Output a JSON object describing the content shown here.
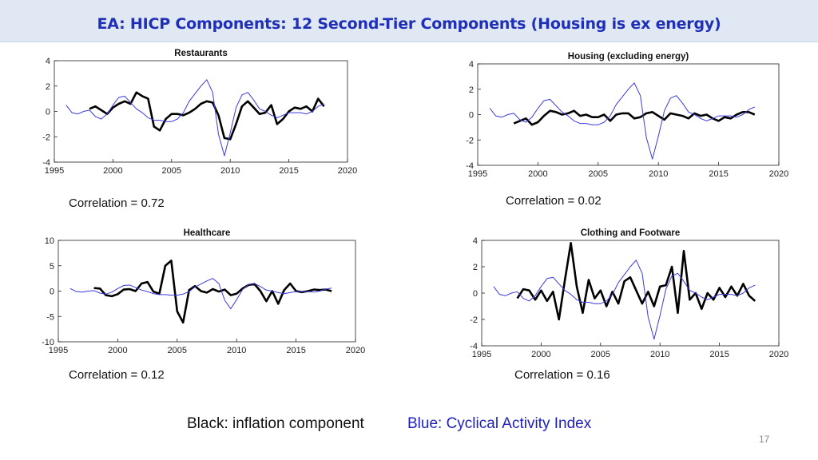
{
  "header": {
    "title": "EA: HICP Components: 12 Second-Tier Components (Housing is ex energy)"
  },
  "colors": {
    "inflation": "#000000",
    "activity": "#3a3ae0",
    "title": "#1f2fb8"
  },
  "chart_data": [
    {
      "type": "line",
      "title": "Restaurants",
      "xlim": [
        1995,
        2020
      ],
      "ylim": [
        -4,
        4
      ],
      "xticks": [
        1995,
        2000,
        2005,
        2010,
        2015,
        2020
      ],
      "yticks": [
        -4,
        -2,
        0,
        2,
        4
      ],
      "correlation_label": "Correlation = 0.72",
      "series": [
        {
          "style": "black",
          "x": [
            1998.0,
            1998.5,
            1999.0,
            1999.5,
            2000.0,
            2000.5,
            2001.0,
            2001.5,
            2002.0,
            2002.5,
            2003.0,
            2003.5,
            2004.0,
            2004.5,
            2005.0,
            2005.5,
            2006.0,
            2006.5,
            2007.0,
            2007.5,
            2008.0,
            2008.5,
            2009.0,
            2009.5,
            2010.0,
            2010.5,
            2011.0,
            2011.5,
            2012.0,
            2012.5,
            2013.0,
            2013.5,
            2014.0,
            2014.5,
            2015.0,
            2015.5,
            2016.0,
            2016.5,
            2017.0,
            2017.5,
            2018.0
          ],
          "y": [
            0.2,
            0.4,
            0.1,
            -0.2,
            0.3,
            0.6,
            0.8,
            0.6,
            1.5,
            1.2,
            1.0,
            -1.2,
            -1.5,
            -0.6,
            -0.2,
            -0.2,
            -0.3,
            -0.1,
            0.2,
            0.6,
            0.8,
            0.7,
            -0.3,
            -2.1,
            -2.2,
            -1.0,
            0.4,
            0.8,
            0.3,
            -0.2,
            -0.1,
            0.5,
            -1.0,
            -0.6,
            0.0,
            0.3,
            0.2,
            0.4,
            0.0,
            1.0,
            0.4
          ]
        },
        {
          "style": "blue",
          "x": [
            1996.0,
            1996.5,
            1997.0,
            1997.5,
            1998.0,
            1998.5,
            1999.0,
            1999.5,
            2000.0,
            2000.5,
            2001.0,
            2001.5,
            2002.0,
            2002.5,
            2003.0,
            2003.5,
            2004.0,
            2004.5,
            2005.0,
            2005.5,
            2006.0,
            2006.5,
            2007.0,
            2007.5,
            2008.0,
            2008.5,
            2009.0,
            2009.5,
            2010.0,
            2010.5,
            2011.0,
            2011.5,
            2012.0,
            2012.5,
            2013.0,
            2013.5,
            2014.0,
            2014.5,
            2015.0,
            2015.5,
            2016.0,
            2016.5,
            2017.0,
            2017.5,
            2018.0
          ],
          "y": [
            0.5,
            -0.1,
            -0.2,
            0.0,
            0.1,
            -0.4,
            -0.6,
            -0.2,
            0.5,
            1.1,
            1.2,
            0.7,
            0.2,
            -0.1,
            -0.5,
            -0.7,
            -0.7,
            -0.8,
            -0.8,
            -0.6,
            -0.1,
            0.8,
            1.4,
            2.0,
            2.5,
            1.5,
            -1.8,
            -3.5,
            -1.7,
            0.3,
            1.3,
            1.5,
            0.9,
            0.2,
            0.0,
            -0.3,
            -0.5,
            -0.3,
            -0.1,
            -0.1,
            -0.1,
            -0.2,
            0.0,
            0.4,
            0.6
          ]
        }
      ]
    },
    {
      "type": "line",
      "title": "Housing (excluding energy)",
      "xlim": [
        1995,
        2020
      ],
      "ylim": [
        -4,
        4
      ],
      "xticks": [
        1995,
        2000,
        2005,
        2010,
        2015,
        2020
      ],
      "yticks": [
        -4,
        -2,
        0,
        2,
        4
      ],
      "correlation_label": "Correlation = 0.02",
      "series": [
        {
          "style": "black",
          "x": [
            1998.0,
            1998.5,
            1999.0,
            1999.5,
            2000.0,
            2000.5,
            2001.0,
            2001.5,
            2002.0,
            2002.5,
            2003.0,
            2003.5,
            2004.0,
            2004.5,
            2005.0,
            2005.5,
            2006.0,
            2006.5,
            2007.0,
            2007.5,
            2008.0,
            2008.5,
            2009.0,
            2009.5,
            2010.0,
            2010.5,
            2011.0,
            2011.5,
            2012.0,
            2012.5,
            2013.0,
            2013.5,
            2014.0,
            2014.5,
            2015.0,
            2015.5,
            2016.0,
            2016.5,
            2017.0,
            2017.5,
            2018.0
          ],
          "y": [
            -0.7,
            -0.5,
            -0.3,
            -0.8,
            -0.6,
            -0.1,
            0.3,
            0.2,
            0.0,
            0.1,
            0.3,
            -0.1,
            0.0,
            -0.2,
            -0.2,
            0.0,
            -0.5,
            0.0,
            0.1,
            0.1,
            -0.3,
            -0.2,
            0.1,
            0.2,
            -0.1,
            -0.4,
            0.1,
            0.0,
            -0.1,
            -0.3,
            0.1,
            -0.1,
            0.0,
            -0.3,
            -0.5,
            -0.2,
            -0.3,
            0.0,
            0.2,
            0.2,
            0.0
          ]
        },
        {
          "style": "blue",
          "x": [
            1996.0,
            1996.5,
            1997.0,
            1997.5,
            1998.0,
            1998.5,
            1999.0,
            1999.5,
            2000.0,
            2000.5,
            2001.0,
            2001.5,
            2002.0,
            2002.5,
            2003.0,
            2003.5,
            2004.0,
            2004.5,
            2005.0,
            2005.5,
            2006.0,
            2006.5,
            2007.0,
            2007.5,
            2008.0,
            2008.5,
            2009.0,
            2009.5,
            2010.0,
            2010.5,
            2011.0,
            2011.5,
            2012.0,
            2012.5,
            2013.0,
            2013.5,
            2014.0,
            2014.5,
            2015.0,
            2015.5,
            2016.0,
            2016.5,
            2017.0,
            2017.5,
            2018.0
          ],
          "y": [
            0.5,
            -0.1,
            -0.2,
            0.0,
            0.1,
            -0.4,
            -0.6,
            -0.2,
            0.5,
            1.1,
            1.2,
            0.7,
            0.2,
            -0.1,
            -0.5,
            -0.7,
            -0.7,
            -0.8,
            -0.8,
            -0.6,
            -0.1,
            0.8,
            1.4,
            2.0,
            2.5,
            1.5,
            -1.8,
            -3.5,
            -1.7,
            0.3,
            1.3,
            1.5,
            0.9,
            0.2,
            0.0,
            -0.3,
            -0.5,
            -0.3,
            -0.1,
            -0.1,
            -0.1,
            -0.2,
            0.0,
            0.4,
            0.6
          ]
        }
      ]
    },
    {
      "type": "line",
      "title": "Healthcare",
      "xlim": [
        1995,
        2020
      ],
      "ylim": [
        -10,
        10
      ],
      "xticks": [
        1995,
        2000,
        2005,
        2010,
        2015,
        2020
      ],
      "yticks": [
        -10,
        -5,
        0,
        5,
        10
      ],
      "correlation_label": "Correlation = 0.12",
      "series": [
        {
          "style": "black",
          "x": [
            1998.0,
            1998.5,
            1999.0,
            1999.5,
            2000.0,
            2000.5,
            2001.0,
            2001.5,
            2002.0,
            2002.5,
            2003.0,
            2003.5,
            2004.0,
            2004.5,
            2005.0,
            2005.5,
            2006.0,
            2006.5,
            2007.0,
            2007.5,
            2008.0,
            2008.5,
            2009.0,
            2009.5,
            2010.0,
            2010.5,
            2011.0,
            2011.5,
            2012.0,
            2012.5,
            2013.0,
            2013.5,
            2014.0,
            2014.5,
            2015.0,
            2015.5,
            2016.0,
            2016.5,
            2017.0,
            2017.5,
            2018.0
          ],
          "y": [
            0.6,
            0.5,
            -0.8,
            -1.0,
            -0.6,
            0.3,
            0.4,
            0.0,
            1.5,
            1.8,
            -0.1,
            -0.5,
            5.0,
            6.0,
            -4.0,
            -6.2,
            0.2,
            1.0,
            0.0,
            -0.3,
            0.4,
            -0.1,
            0.3,
            -0.8,
            -0.5,
            0.5,
            1.2,
            1.4,
            0.0,
            -2.0,
            0.0,
            -2.5,
            0.2,
            1.5,
            0.0,
            -0.2,
            0.0,
            0.3,
            0.2,
            0.3,
            0.0
          ]
        },
        {
          "style": "blue",
          "x": [
            1996.0,
            1996.5,
            1997.0,
            1997.5,
            1998.0,
            1998.5,
            1999.0,
            1999.5,
            2000.0,
            2000.5,
            2001.0,
            2001.5,
            2002.0,
            2002.5,
            2003.0,
            2003.5,
            2004.0,
            2004.5,
            2005.0,
            2005.5,
            2006.0,
            2006.5,
            2007.0,
            2007.5,
            2008.0,
            2008.5,
            2009.0,
            2009.5,
            2010.0,
            2010.5,
            2011.0,
            2011.5,
            2012.0,
            2012.5,
            2013.0,
            2013.5,
            2014.0,
            2014.5,
            2015.0,
            2015.5,
            2016.0,
            2016.5,
            2017.0,
            2017.5,
            2018.0
          ],
          "y": [
            0.5,
            -0.1,
            -0.2,
            0.0,
            0.1,
            -0.4,
            -0.6,
            -0.2,
            0.5,
            1.1,
            1.2,
            0.7,
            0.2,
            -0.1,
            -0.5,
            -0.7,
            -0.7,
            -0.8,
            -0.8,
            -0.6,
            -0.1,
            0.8,
            1.4,
            2.0,
            2.5,
            1.5,
            -1.8,
            -3.5,
            -1.7,
            0.3,
            1.3,
            1.5,
            0.9,
            0.2,
            0.0,
            -0.3,
            -0.5,
            -0.3,
            -0.1,
            -0.1,
            -0.1,
            -0.2,
            0.0,
            0.4,
            0.6
          ]
        }
      ]
    },
    {
      "type": "line",
      "title": "Clothing and Footware",
      "xlim": [
        1995,
        2020
      ],
      "ylim": [
        -4,
        4
      ],
      "xticks": [
        1995,
        2000,
        2005,
        2010,
        2015,
        2020
      ],
      "yticks": [
        -4,
        -2,
        0,
        2,
        4
      ],
      "correlation_label": "Correlation = 0.16",
      "series": [
        {
          "style": "black",
          "x": [
            1998.0,
            1998.5,
            1999.0,
            1999.5,
            2000.0,
            2000.5,
            2001.0,
            2001.5,
            2002.0,
            2002.5,
            2003.0,
            2003.5,
            2004.0,
            2004.5,
            2005.0,
            2005.5,
            2006.0,
            2006.5,
            2007.0,
            2007.5,
            2008.0,
            2008.5,
            2009.0,
            2009.5,
            2010.0,
            2010.5,
            2011.0,
            2011.5,
            2012.0,
            2012.5,
            2013.0,
            2013.5,
            2014.0,
            2014.5,
            2015.0,
            2015.5,
            2016.0,
            2016.5,
            2017.0,
            2017.5,
            2018.0
          ],
          "y": [
            -0.4,
            0.3,
            0.2,
            -0.5,
            0.2,
            -0.6,
            0.1,
            -2.0,
            1.0,
            3.8,
            0.5,
            -1.5,
            1.0,
            -0.4,
            0.2,
            -1.0,
            0.1,
            -0.8,
            0.9,
            1.2,
            0.2,
            -0.8,
            0.1,
            -1.0,
            0.5,
            0.6,
            2.0,
            -1.5,
            3.2,
            -0.5,
            0.0,
            -1.2,
            0.0,
            -0.5,
            0.4,
            -0.3,
            0.5,
            -0.2,
            0.7,
            -0.2,
            -0.6
          ]
        },
        {
          "style": "blue",
          "x": [
            1996.0,
            1996.5,
            1997.0,
            1997.5,
            1998.0,
            1998.5,
            1999.0,
            1999.5,
            2000.0,
            2000.5,
            2001.0,
            2001.5,
            2002.0,
            2002.5,
            2003.0,
            2003.5,
            2004.0,
            2004.5,
            2005.0,
            2005.5,
            2006.0,
            2006.5,
            2007.0,
            2007.5,
            2008.0,
            2008.5,
            2009.0,
            2009.5,
            2010.0,
            2010.5,
            2011.0,
            2011.5,
            2012.0,
            2012.5,
            2013.0,
            2013.5,
            2014.0,
            2014.5,
            2015.0,
            2015.5,
            2016.0,
            2016.5,
            2017.0,
            2017.5,
            2018.0
          ],
          "y": [
            0.5,
            -0.1,
            -0.2,
            0.0,
            0.1,
            -0.4,
            -0.6,
            -0.2,
            0.5,
            1.1,
            1.2,
            0.7,
            0.2,
            -0.1,
            -0.5,
            -0.7,
            -0.7,
            -0.8,
            -0.8,
            -0.6,
            -0.1,
            0.8,
            1.4,
            2.0,
            2.5,
            1.5,
            -1.8,
            -3.5,
            -1.7,
            0.3,
            1.3,
            1.5,
            0.9,
            0.2,
            0.0,
            -0.3,
            -0.5,
            -0.3,
            -0.1,
            -0.1,
            -0.1,
            -0.2,
            0.0,
            0.4,
            0.6
          ]
        }
      ]
    }
  ],
  "legend": {
    "black_label": "Black: inflation component",
    "blue_label": "Blue: Cyclical Activity Index"
  },
  "footer": {
    "page_number": "17"
  }
}
